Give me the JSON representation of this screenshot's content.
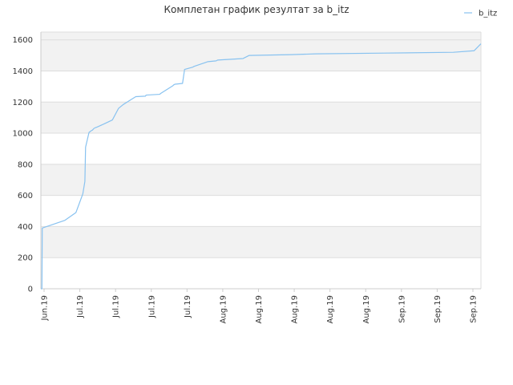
{
  "chart_data": {
    "type": "line",
    "title": "Комплетан график резултат за b_itz",
    "xlabel": "",
    "ylabel": "",
    "ylim": [
      0,
      1650
    ],
    "yticks": [
      0,
      200,
      400,
      600,
      800,
      1000,
      1200,
      1400,
      1600
    ],
    "xticks": [
      "Jun.19",
      "Jul.19",
      "Jul.19",
      "Jul.19",
      "Jul.19",
      "Aug.19",
      "Aug.19",
      "Aug.19",
      "Aug.19",
      "Aug.19",
      "Sep.19",
      "Sep.19",
      "Sep.19"
    ],
    "grid": true,
    "legend": "top-right",
    "colors": {
      "line": "#88c2f0",
      "band": "#f2f2f2",
      "grid": "#dddddd",
      "axis": "#cccccc"
    },
    "series": [
      {
        "name": "b_itz",
        "x": [
          0.0,
          0.15,
          0.2,
          3.5,
          5.1,
          6.1,
          6.4,
          6.5,
          7.0,
          7.3,
          7.5,
          7.6,
          7.7,
          7.9,
          8.2,
          9.2,
          10.4,
          11.3,
          12.0,
          13.8,
          15.2,
          15.3,
          17.3,
          17.4,
          19.2,
          19.3,
          19.5,
          20.6,
          20.9,
          22.1,
          22.3,
          24.3,
          25.5,
          25.7,
          29.4,
          30.3,
          36.4,
          40.0,
          50.0,
          60.0,
          63.0,
          64.0
        ],
        "values": [
          0,
          0,
          390,
          440,
          490,
          610,
          690,
          910,
          1005,
          1015,
          1020,
          1025,
          1030,
          1035,
          1040,
          1060,
          1085,
          1160,
          1185,
          1235,
          1238,
          1245,
          1250,
          1255,
          1305,
          1310,
          1315,
          1320,
          1410,
          1425,
          1430,
          1460,
          1465,
          1470,
          1480,
          1500,
          1505,
          1510,
          1515,
          1520,
          1530,
          1575
        ]
      }
    ]
  }
}
